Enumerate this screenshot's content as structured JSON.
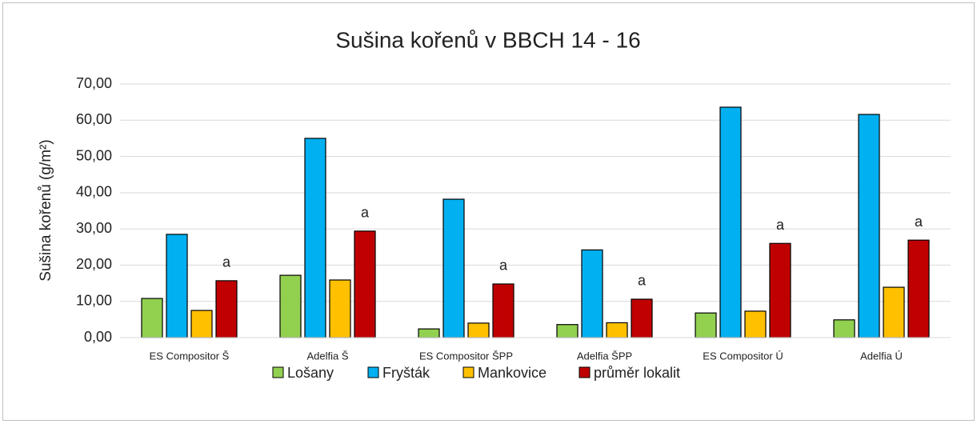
{
  "chart_data": {
    "type": "bar",
    "title": "Sušina kořenů v BBCH 14 - 16",
    "y_label": "Sušina kořenů  (g/m²)",
    "categories": [
      "ES Compositor Š",
      "Adelfia Š",
      "ES Compositor ŠPP",
      "Adelfia ŠPP",
      "ES Compositor Ú",
      "Adelfia Ú"
    ],
    "series": [
      {
        "name": "Lošany",
        "color": "#92d050",
        "values": [
          10.8,
          17.2,
          2.4,
          3.6,
          6.8,
          4.9
        ]
      },
      {
        "name": "Fryšták",
        "color": "#00b0f0",
        "values": [
          28.5,
          55.0,
          38.2,
          24.2,
          63.6,
          61.6
        ]
      },
      {
        "name": "Mankovice",
        "color": "#ffc000",
        "values": [
          7.5,
          15.9,
          4.0,
          4.1,
          7.3,
          13.9
        ]
      },
      {
        "name": "průměr lokalit",
        "color": "#c00000",
        "values": [
          15.7,
          29.4,
          14.8,
          10.6,
          26.0,
          26.9
        ]
      }
    ],
    "annotations": [
      "a",
      "a",
      "a",
      "a",
      "a",
      "a"
    ],
    "ylim": [
      0,
      70
    ],
    "yticks": [
      {
        "value": 0,
        "label": "0,00"
      },
      {
        "value": 10,
        "label": "10,00"
      },
      {
        "value": 20,
        "label": "20,00"
      },
      {
        "value": 30,
        "label": "30,00"
      },
      {
        "value": 40,
        "label": "40,00"
      },
      {
        "value": 50,
        "label": "50,00"
      },
      {
        "value": 60,
        "label": "60,00"
      },
      {
        "value": 70,
        "label": "70,00"
      }
    ],
    "grid": true,
    "legend": "bottom"
  }
}
